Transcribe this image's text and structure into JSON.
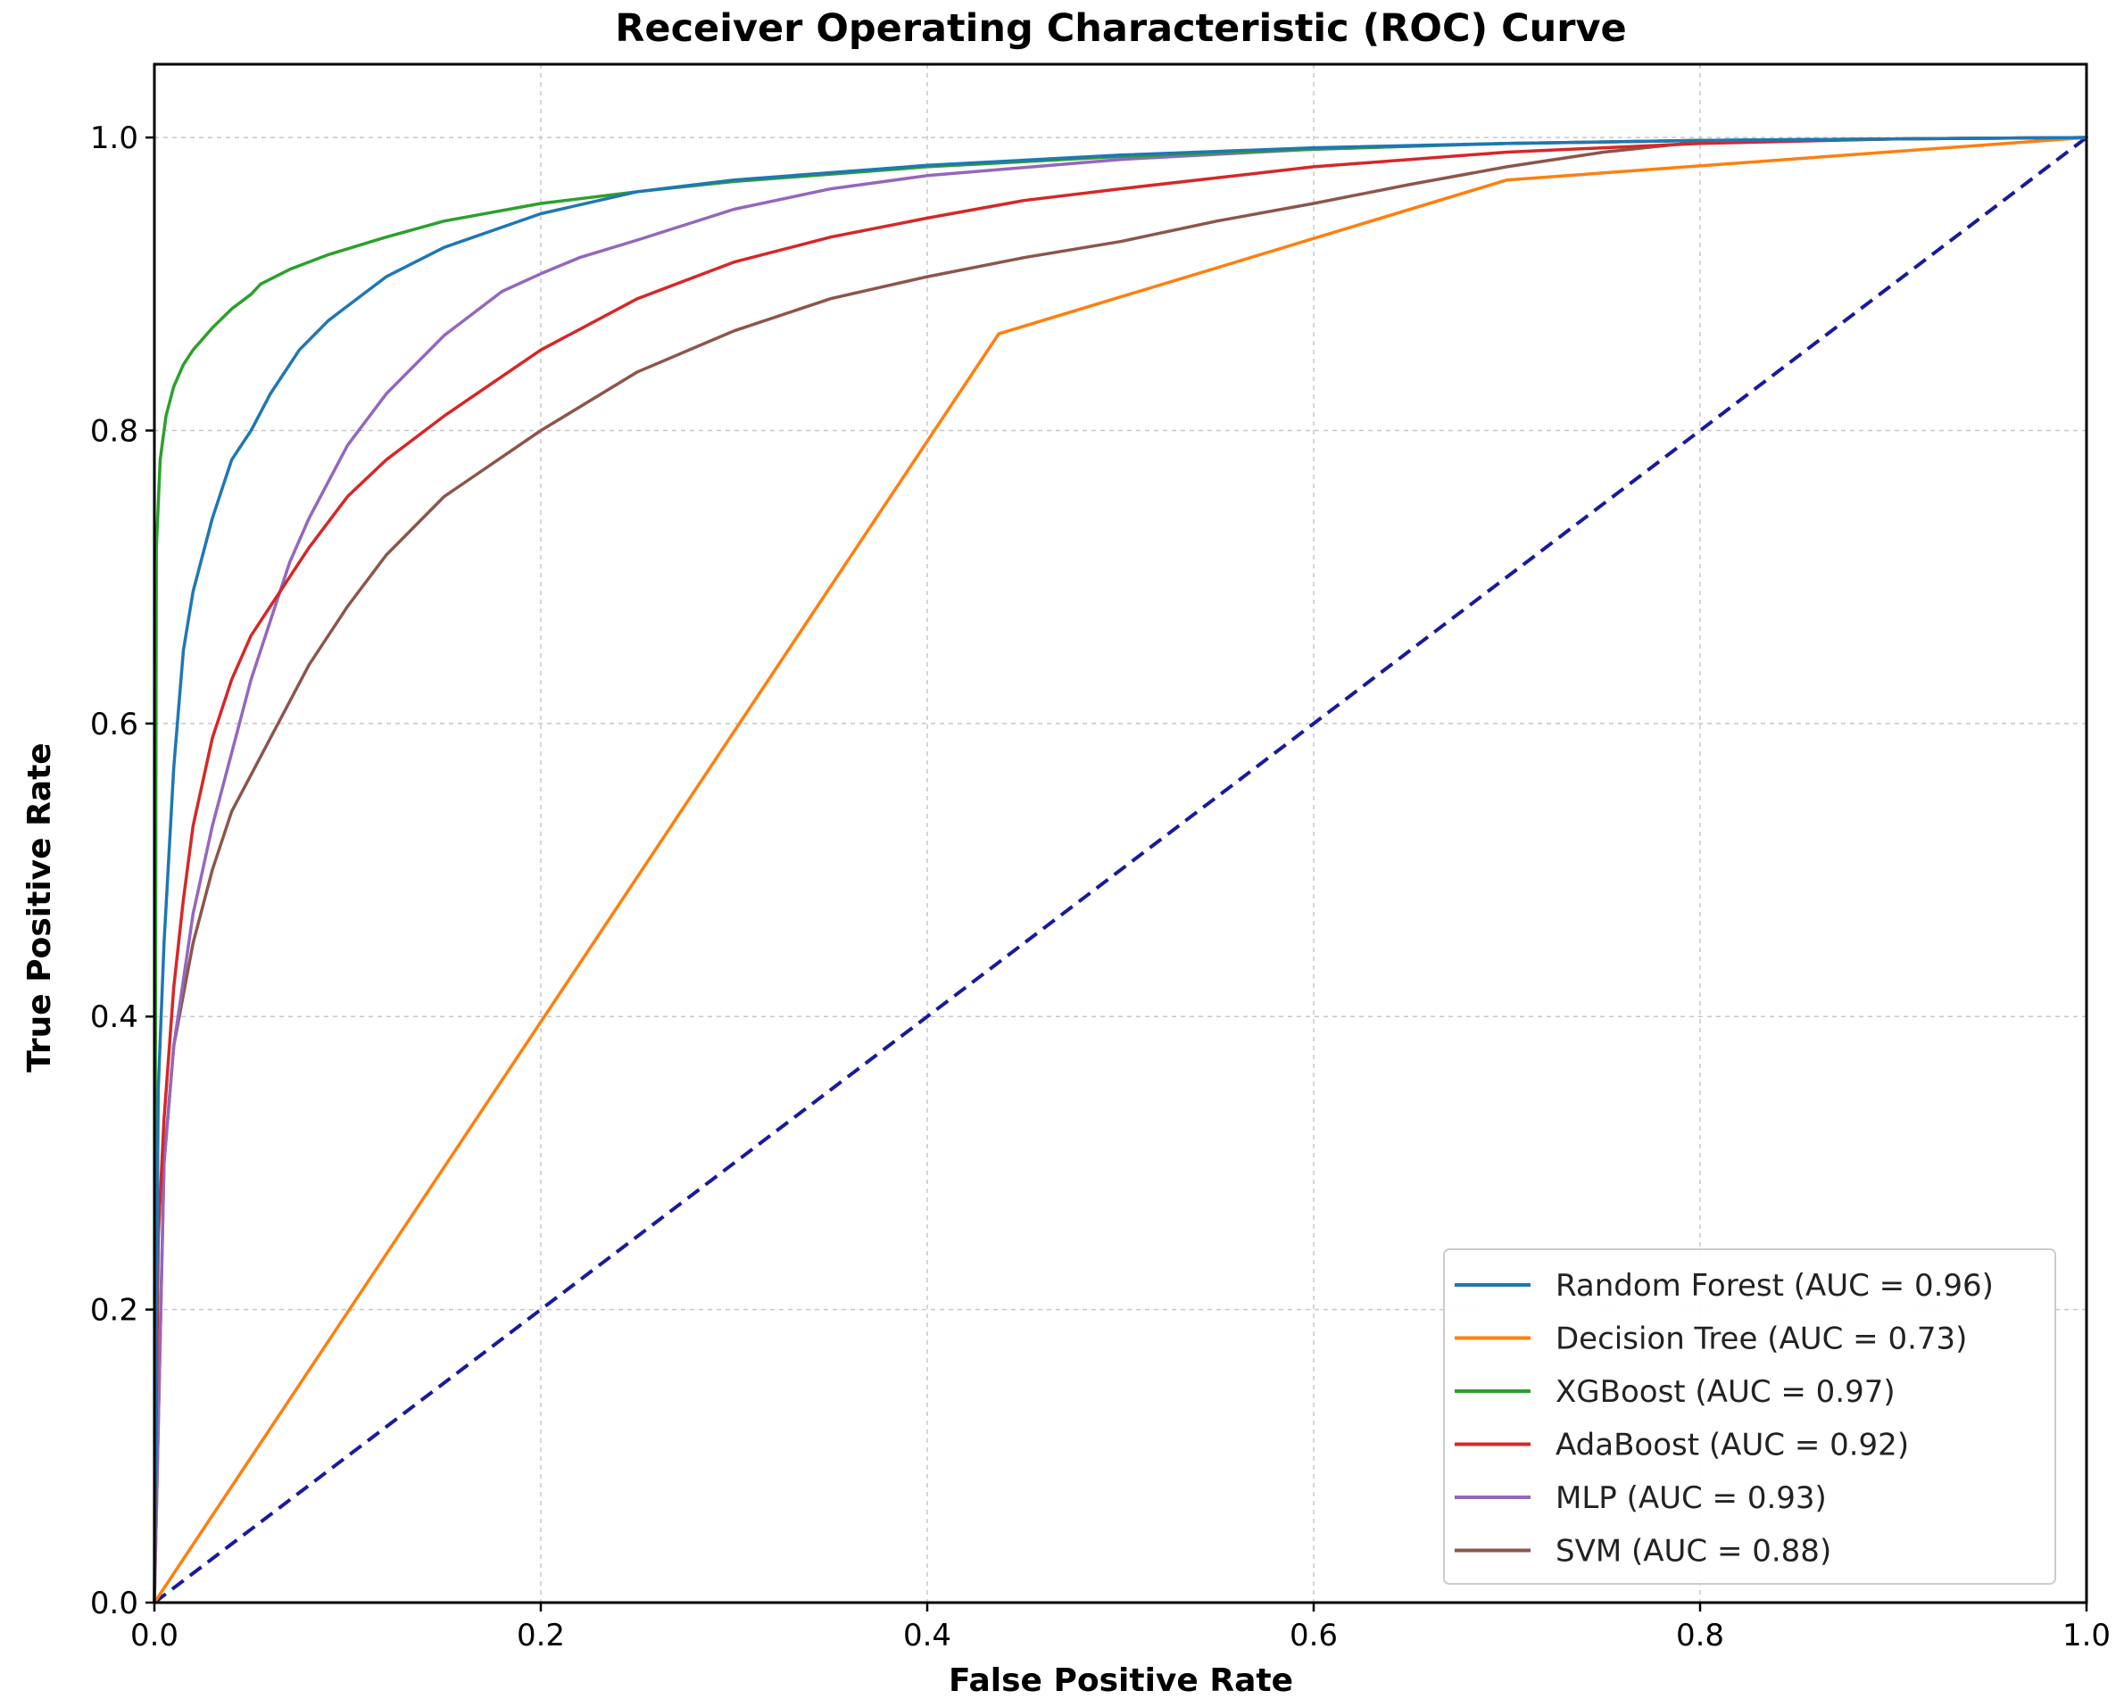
{
  "chart_data": {
    "type": "line",
    "title": "Receiver Operating Characteristic (ROC) Curve",
    "xlabel": "False Positive Rate",
    "ylabel": "True Positive Rate",
    "xlim": [
      0.0,
      1.0
    ],
    "ylim": [
      0.0,
      1.05
    ],
    "xticks": [
      "0.0",
      "0.2",
      "0.4",
      "0.6",
      "0.8",
      "1.0"
    ],
    "yticks": [
      "0.0",
      "0.2",
      "0.4",
      "0.6",
      "0.8",
      "1.0"
    ],
    "grid": true,
    "legend_position": "lower-right",
    "series": [
      {
        "name": "Random Forest (AUC = 0.96)",
        "color": "#1f77b4",
        "x": [
          0,
          0.002,
          0.005,
          0.01,
          0.015,
          0.02,
          0.03,
          0.04,
          0.05,
          0.06,
          0.075,
          0.09,
          0.1,
          0.12,
          0.15,
          0.2,
          0.25,
          0.3,
          0.4,
          0.5,
          0.6,
          0.7,
          0.8,
          0.9,
          1.0
        ],
        "y": [
          0,
          0.35,
          0.45,
          0.57,
          0.65,
          0.69,
          0.74,
          0.78,
          0.8,
          0.825,
          0.855,
          0.875,
          0.885,
          0.905,
          0.925,
          0.948,
          0.963,
          0.971,
          0.981,
          0.988,
          0.993,
          0.996,
          0.998,
          0.999,
          1.0
        ]
      },
      {
        "name": "Decision Tree (AUC = 0.73)",
        "color": "#ff7f0e",
        "x": [
          0,
          0.437,
          0.7,
          1.0
        ],
        "y": [
          0,
          0.866,
          0.971,
          1.0
        ]
      },
      {
        "name": "XGBoost (AUC = 0.97)",
        "color": "#2ca02c",
        "x": [
          0,
          0.001,
          0.003,
          0.006,
          0.01,
          0.015,
          0.02,
          0.03,
          0.04,
          0.05,
          0.055,
          0.07,
          0.09,
          0.12,
          0.15,
          0.2,
          0.25,
          0.3,
          0.4,
          0.5,
          0.6,
          0.7,
          0.8,
          0.9,
          1.0
        ],
        "y": [
          0,
          0.72,
          0.78,
          0.81,
          0.83,
          0.845,
          0.855,
          0.87,
          0.883,
          0.893,
          0.9,
          0.91,
          0.92,
          0.932,
          0.943,
          0.955,
          0.963,
          0.97,
          0.98,
          0.987,
          0.992,
          0.996,
          0.998,
          0.999,
          1.0
        ]
      },
      {
        "name": "AdaBoost (AUC = 0.92)",
        "color": "#d62728",
        "x": [
          0,
          0.002,
          0.005,
          0.01,
          0.015,
          0.02,
          0.03,
          0.04,
          0.05,
          0.06,
          0.08,
          0.1,
          0.12,
          0.15,
          0.2,
          0.25,
          0.3,
          0.35,
          0.4,
          0.45,
          0.5,
          0.6,
          0.7,
          0.8,
          0.9,
          1.0
        ],
        "y": [
          0,
          0.25,
          0.33,
          0.42,
          0.48,
          0.53,
          0.59,
          0.63,
          0.66,
          0.68,
          0.72,
          0.755,
          0.78,
          0.81,
          0.855,
          0.89,
          0.915,
          0.932,
          0.945,
          0.957,
          0.965,
          0.98,
          0.99,
          0.996,
          0.999,
          1.0
        ]
      },
      {
        "name": "MLP (AUC = 0.93)",
        "color": "#9467bd",
        "x": [
          0,
          0.005,
          0.01,
          0.02,
          0.03,
          0.04,
          0.05,
          0.06,
          0.07,
          0.08,
          0.1,
          0.12,
          0.15,
          0.18,
          0.2,
          0.22,
          0.25,
          0.3,
          0.35,
          0.4,
          0.5,
          0.6,
          0.7,
          0.8,
          0.9,
          1.0
        ],
        "y": [
          0,
          0.3,
          0.38,
          0.47,
          0.53,
          0.58,
          0.63,
          0.67,
          0.71,
          0.74,
          0.79,
          0.825,
          0.865,
          0.895,
          0.907,
          0.918,
          0.93,
          0.951,
          0.965,
          0.974,
          0.985,
          0.992,
          0.996,
          0.998,
          0.999,
          1.0
        ]
      },
      {
        "name": "SVM (AUC = 0.88)",
        "color": "#8c564b",
        "x": [
          0,
          0.005,
          0.01,
          0.02,
          0.03,
          0.04,
          0.05,
          0.06,
          0.08,
          0.1,
          0.12,
          0.15,
          0.2,
          0.25,
          0.3,
          0.35,
          0.4,
          0.45,
          0.5,
          0.55,
          0.6,
          0.65,
          0.7,
          0.75,
          0.8,
          0.9,
          1.0
        ],
        "y": [
          0,
          0.3,
          0.38,
          0.45,
          0.5,
          0.54,
          0.565,
          0.59,
          0.64,
          0.68,
          0.715,
          0.755,
          0.8,
          0.84,
          0.868,
          0.89,
          0.905,
          0.918,
          0.929,
          0.943,
          0.955,
          0.968,
          0.98,
          0.99,
          0.997,
          0.999,
          1.0
        ]
      }
    ],
    "reference_line": {
      "color": "#1a1a9a",
      "style": "dashed",
      "x": [
        0,
        1
      ],
      "y": [
        0,
        1
      ]
    }
  }
}
